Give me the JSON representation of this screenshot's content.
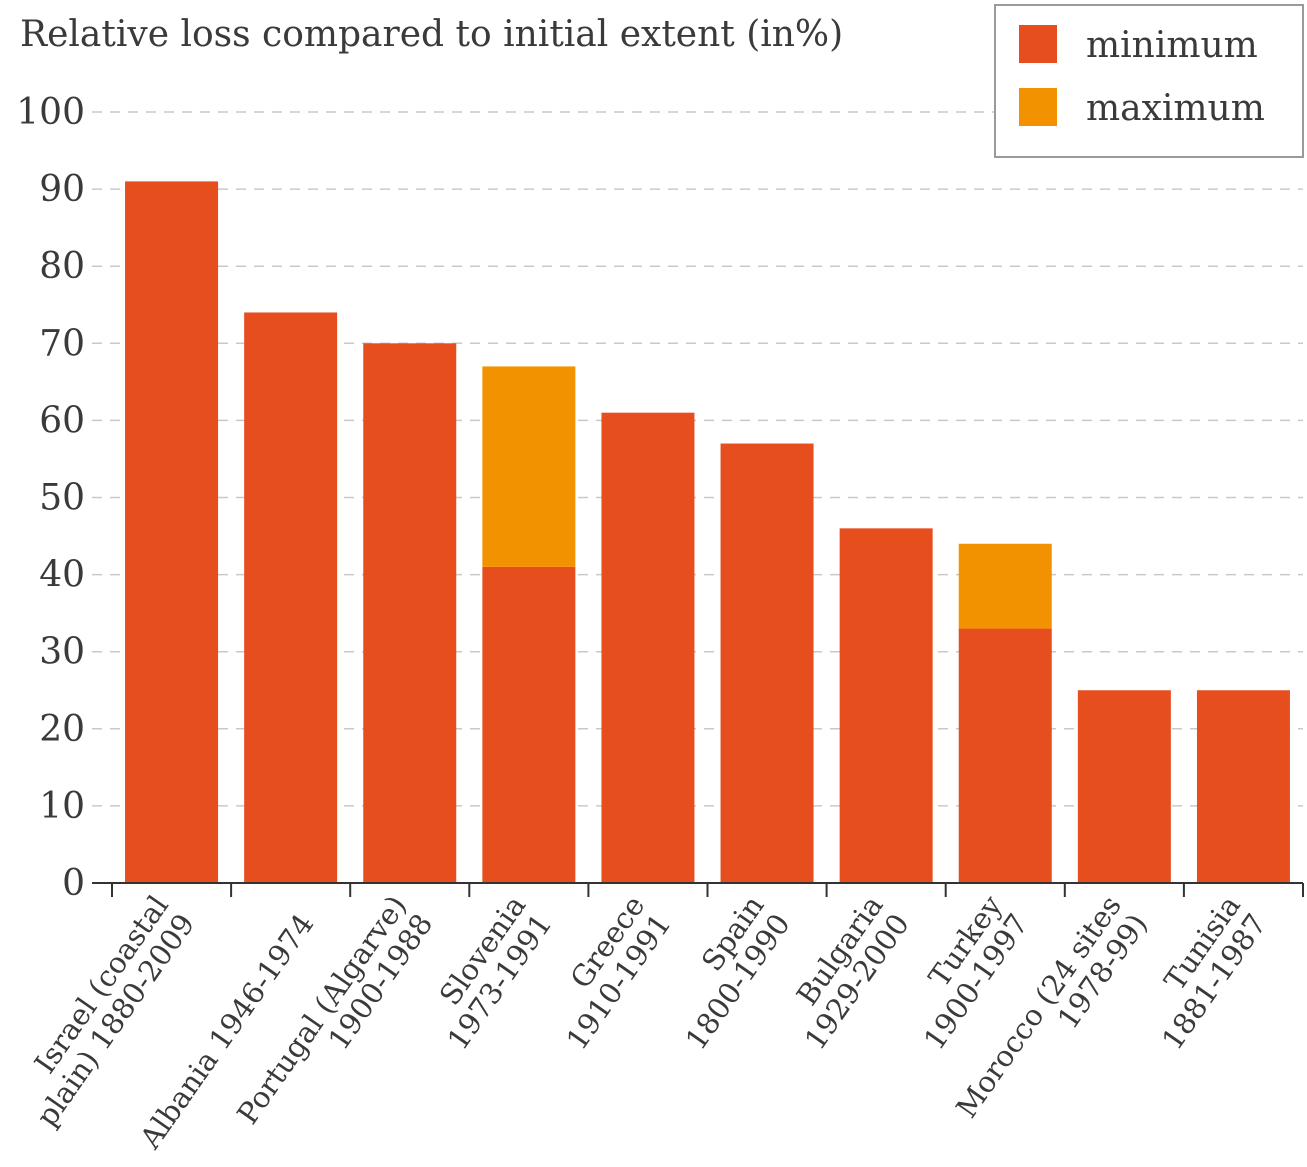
{
  "chart_data": {
    "type": "bar",
    "stacked": true,
    "title": "",
    "ylabel": "Relative loss compared to initial extent (in%)",
    "xlabel": "",
    "ylim": [
      0,
      100
    ],
    "yticks": [
      0,
      10,
      20,
      30,
      40,
      50,
      60,
      70,
      80,
      90,
      100
    ],
    "grid": true,
    "legend_position": "top-right",
    "categories": [
      [
        "Israel (coastal",
        "plain) 1880-2009"
      ],
      [
        "Albania 1946-1974"
      ],
      [
        "Portugal (Algarve)",
        "1900-1988"
      ],
      [
        "Slovenia",
        "1973-1991"
      ],
      [
        "Greece",
        "1910-1991"
      ],
      [
        "Spain",
        "1800-1990"
      ],
      [
        "Bulgaria",
        "1929-2000"
      ],
      [
        "Turkey",
        "1900-1997"
      ],
      [
        "Morocco (24 sites",
        "1978-99)"
      ],
      [
        "Tunisia",
        "1881-1987"
      ]
    ],
    "series": [
      {
        "name": "minimum",
        "color": "#e64e1e",
        "values": [
          91,
          74,
          70,
          41,
          61,
          57,
          46,
          33,
          25,
          25
        ]
      },
      {
        "name": "maximum",
        "color": "#f39200",
        "values": [
          0,
          0,
          0,
          26,
          0,
          0,
          0,
          11,
          0,
          0
        ]
      }
    ]
  }
}
